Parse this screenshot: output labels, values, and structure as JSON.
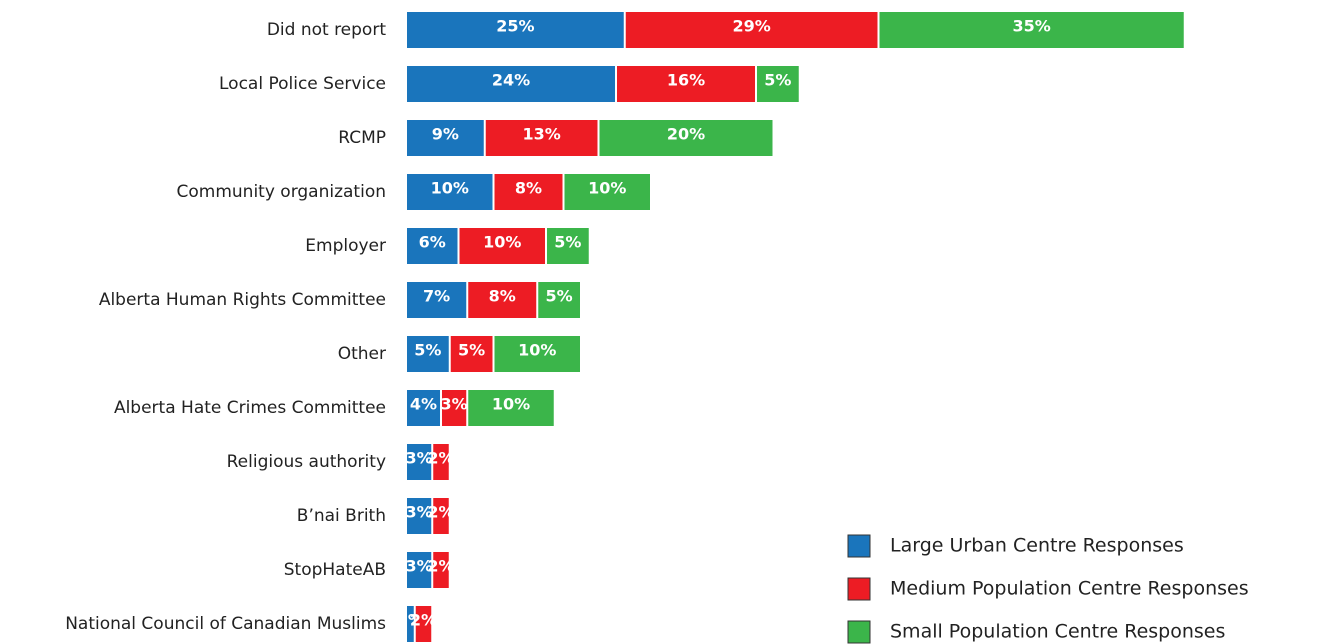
{
  "chart_data": {
    "type": "stacked_bar_horizontal",
    "categories": [
      "Did not report",
      "Local Police Service",
      "RCMP",
      "Community organization",
      "Employer",
      "Alberta Human Rights Committee",
      "Other",
      "Alberta Hate Crimes Committee",
      "Religious authority",
      "B’nai Brith",
      "StopHateAB",
      "National Council of Canadian Muslims"
    ],
    "series": [
      {
        "name": "Large Urban Centre Responses",
        "color": "#1a75bc",
        "values": [
          25,
          24,
          9,
          10,
          6,
          7,
          5,
          4,
          3,
          3,
          3,
          1
        ],
        "value_labels": [
          "25%",
          "24%",
          "9%",
          "10%",
          "6%",
          "7%",
          "5%",
          "4%",
          "3%",
          "3%",
          "3%",
          "1%"
        ]
      },
      {
        "name": "Medium Population Centre Responses",
        "color": "#ed1c24",
        "values": [
          29,
          16,
          13,
          8,
          10,
          8,
          5,
          3,
          2,
          2,
          2,
          2
        ],
        "value_labels": [
          "29%",
          "16%",
          "13%",
          "8%",
          "10%",
          "8%",
          "5%",
          "3%",
          "2%",
          "2%",
          "2%",
          "2%"
        ]
      },
      {
        "name": "Small Population Centre Responses",
        "color": "#3bb54a",
        "values": [
          35,
          5,
          20,
          10,
          5,
          5,
          10,
          10,
          null,
          null,
          null,
          null
        ],
        "value_labels": [
          "35%",
          "5%",
          "20%",
          "10%",
          "5%",
          "5%",
          "10%",
          "10%",
          null,
          null,
          null,
          null
        ]
      }
    ],
    "legend": "lower-right"
  }
}
